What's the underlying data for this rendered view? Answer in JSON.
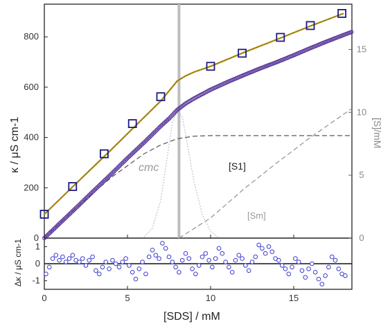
{
  "chart_data": [
    {
      "type": "scatter",
      "panel": "main",
      "xlabel": "[SDS] / mM",
      "ylabel": "κ / μS cm-1",
      "y2label": "[S]/mM",
      "xlim": [
        0,
        18.5
      ],
      "ylim": [
        0,
        930
      ],
      "y2lim": [
        0,
        18.6
      ],
      "x_ticks": [
        0,
        5,
        10,
        15
      ],
      "y_ticks": [
        0,
        200,
        400,
        600,
        800
      ],
      "y2_ticks": [
        0,
        5,
        10,
        15
      ],
      "cmc": 8.1,
      "annotations": {
        "cmc": "cmc",
        "s1": "[S1]",
        "sm": "[Sm]"
      },
      "series": [
        {
          "kind": "squares",
          "color": "#1a1a80",
          "x": [
            0,
            1.7,
            3.6,
            5.3,
            7.0,
            10.0,
            11.9,
            14.2,
            16.0,
            17.9
          ],
          "y": [
            95,
            205,
            335,
            455,
            562,
            683,
            735,
            798,
            845,
            893
          ]
        },
        {
          "kind": "fit-line",
          "color": "#8a8a00",
          "x": [
            0,
            2,
            4,
            6,
            7,
            7.5,
            8.0,
            8.5,
            9,
            10,
            12,
            14,
            16,
            18
          ],
          "y": [
            95,
            223,
            350,
            480,
            545,
            585,
            625,
            645,
            660,
            683,
            738,
            790,
            843,
            893
          ]
        },
        {
          "kind": "circles-dense",
          "color": "#5a3a9a",
          "x": [
            0,
            1,
            2,
            3,
            4,
            5,
            6,
            7,
            7.5,
            8,
            8.5,
            9,
            10,
            11,
            12,
            13,
            14,
            15,
            16,
            17,
            18.5
          ],
          "y": [
            0,
            63,
            126,
            190,
            253,
            318,
            380,
            445,
            475,
            510,
            535,
            555,
            590,
            620,
            648,
            675,
            700,
            727,
            755,
            782,
            820
          ]
        },
        {
          "kind": "dashed-y2",
          "name": "[S1]",
          "color": "#444444",
          "x": [
            0,
            2,
            4,
            6,
            7,
            8,
            9,
            10,
            12,
            14,
            16,
            18.5
          ],
          "y": [
            0,
            2.5,
            4.8,
            6.7,
            7.4,
            7.9,
            8.1,
            8.15,
            8.15,
            8.15,
            8.15,
            8.15
          ]
        },
        {
          "kind": "dashed-y2",
          "name": "[Sm]",
          "color": "#888888",
          "x": [
            8.1,
            10,
            12,
            14,
            16,
            18.5
          ],
          "y": [
            0,
            1.6,
            3.9,
            6.0,
            8.0,
            10.3
          ]
        },
        {
          "kind": "dotted-y2",
          "name": "cmc-distribution",
          "color": "#bbbbbb",
          "x": [
            6.0,
            6.5,
            7.0,
            7.4,
            7.7,
            8.0,
            8.3,
            8.6,
            9.0,
            9.5,
            10.0,
            10.5
          ],
          "y": [
            0.1,
            0.8,
            3.0,
            6.5,
            9.2,
            10.2,
            9.6,
            7.5,
            4.5,
            1.9,
            0.5,
            0.05
          ]
        }
      ]
    },
    {
      "type": "scatter",
      "panel": "residuals",
      "ylabel": "Δκ / μS cm-1",
      "xlim": [
        0,
        18.5
      ],
      "ylim": [
        -1.5,
        1.5
      ],
      "y_ticks": [
        -1,
        0,
        1
      ],
      "series": [
        {
          "kind": "residuals",
          "color": "#3a3ad0",
          "x": [
            0.1,
            0.3,
            0.5,
            0.7,
            0.9,
            1.1,
            1.3,
            1.5,
            1.7,
            1.9,
            2.1,
            2.3,
            2.5,
            2.7,
            2.9,
            3.1,
            3.3,
            3.5,
            3.7,
            3.9,
            4.1,
            4.3,
            4.5,
            4.7,
            4.9,
            5.1,
            5.3,
            5.5,
            5.7,
            5.9,
            6.1,
            6.3,
            6.5,
            6.7,
            6.9,
            7.1,
            7.3,
            7.5,
            7.7,
            7.9,
            8.1,
            8.3,
            8.5,
            8.7,
            8.9,
            9.1,
            9.3,
            9.5,
            9.7,
            9.9,
            10.1,
            10.3,
            10.5,
            10.7,
            10.9,
            11.1,
            11.3,
            11.5,
            11.7,
            11.9,
            12.1,
            12.3,
            12.5,
            12.7,
            12.9,
            13.1,
            13.3,
            13.5,
            13.7,
            13.9,
            14.1,
            14.3,
            14.5,
            14.7,
            14.9,
            15.1,
            15.3,
            15.5,
            15.7,
            15.9,
            16.1,
            16.3,
            16.5,
            16.7,
            16.9,
            17.1,
            17.3,
            17.5,
            17.7,
            17.9,
            18.1
          ],
          "y": [
            -0.6,
            -0.2,
            0.3,
            0.5,
            0.2,
            0.4,
            0.1,
            0.3,
            0.5,
            0.2,
            0.1,
            0.3,
            -0.1,
            0.2,
            0.4,
            -0.4,
            -0.6,
            -0.2,
            0.1,
            -0.3,
            0.2,
            0.0,
            -0.2,
            0.1,
            0.3,
            -0.1,
            -0.5,
            -0.9,
            -0.3,
            0.1,
            -0.6,
            0.4,
            0.8,
            0.5,
            0.3,
            1.2,
            0.9,
            0.4,
            0.1,
            -0.2,
            -0.5,
            0.2,
            0.6,
            0.3,
            -0.3,
            -0.6,
            -0.1,
            0.4,
            0.6,
            0.2,
            -0.2,
            0.3,
            0.9,
            0.6,
            0.1,
            -0.2,
            -0.5,
            0.2,
            0.5,
            0.3,
            -0.1,
            -0.4,
            0.1,
            0.4,
            1.1,
            0.9,
            0.6,
            1.0,
            0.7,
            0.3,
            0.2,
            -0.1,
            -0.3,
            -0.6,
            -0.2,
            0.3,
            0.1,
            -0.4,
            -0.8,
            -0.3,
            0.0,
            -0.5,
            -0.9,
            -1.2,
            -0.7,
            -0.2,
            0.4,
            0.2,
            -0.3,
            -0.6,
            -0.7
          ]
        }
      ]
    }
  ]
}
